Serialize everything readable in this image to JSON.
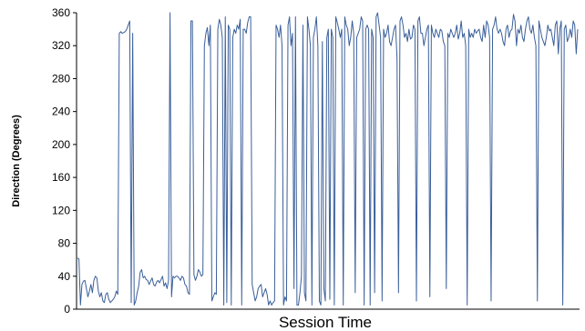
{
  "chart_data": {
    "type": "line",
    "title": "",
    "xlabel": "Session Time",
    "ylabel": "Direction (Degrees)",
    "ylim": [
      0,
      360
    ],
    "yticks": [
      0,
      40,
      80,
      120,
      160,
      200,
      240,
      280,
      320,
      360
    ],
    "grid": false,
    "legend": "none",
    "series_color": "#3a5f9a",
    "series": [
      {
        "values": [
          62,
          61,
          5,
          30,
          34,
          35,
          25,
          15,
          22,
          30,
          20,
          35,
          40,
          38,
          22,
          15,
          20,
          10,
          8,
          18,
          20,
          12,
          8,
          10,
          12,
          15,
          22,
          18,
          335,
          337,
          335,
          336,
          337,
          340,
          345,
          350,
          8,
          335,
          5,
          10,
          20,
          28,
          45,
          48,
          38,
          40,
          36,
          35,
          30,
          34,
          38,
          30,
          28,
          33,
          35,
          32,
          36,
          40,
          28,
          32,
          25,
          35,
          360,
          15,
          40,
          38,
          40,
          40,
          38,
          35,
          40,
          38,
          30,
          28,
          20,
          18,
          350,
          350,
          42,
          35,
          40,
          48,
          45,
          40,
          42,
          320,
          335,
          342,
          320,
          345,
          10,
          15,
          20,
          18,
          340,
          352,
          345,
          330,
          5,
          355,
          8,
          345,
          340,
          5,
          330,
          340,
          335,
          345,
          340,
          352,
          5,
          340,
          340,
          335,
          348,
          355,
          355,
          30,
          20,
          10,
          15,
          25,
          28,
          30,
          15,
          20,
          25,
          18,
          5,
          10,
          5,
          8,
          10,
          345,
          340,
          330,
          345,
          320,
          5,
          15,
          10,
          345,
          355,
          320,
          335,
          25,
          355,
          5,
          5,
          20,
          40,
          345,
          20,
          10,
          355,
          340,
          320,
          5,
          330,
          340,
          355,
          320,
          10,
          5,
          325,
          25,
          10,
          330,
          340,
          12,
          340,
          330,
          5,
          355,
          348,
          340,
          330,
          340,
          5,
          355,
          345,
          340,
          320,
          330,
          350,
          335,
          20,
          330,
          335,
          340,
          355,
          350,
          5,
          340,
          345,
          340,
          5,
          340,
          330,
          20,
          355,
          360,
          345,
          330,
          10,
          340,
          330,
          335,
          345,
          325,
          320,
          330,
          340,
          345,
          305,
          20,
          350,
          355,
          345,
          330,
          335,
          325,
          340,
          328,
          330,
          345,
          340,
          10,
          350,
          355,
          335,
          335,
          320,
          330,
          340,
          345,
          15,
          345,
          335,
          330,
          340,
          335,
          330,
          340,
          338,
          325,
          320,
          25,
          335,
          330,
          340,
          335,
          330,
          335,
          345,
          328,
          335,
          350,
          330,
          335,
          320,
          5,
          340,
          330,
          335,
          330,
          340,
          335,
          338,
          340,
          330,
          325,
          345,
          330,
          350,
          345,
          330,
          10,
          340,
          345,
          355,
          340,
          335,
          340,
          335,
          325,
          320,
          340,
          345,
          330,
          338,
          340,
          358,
          350,
          320,
          340,
          335,
          345,
          330,
          325,
          340,
          350,
          355,
          340,
          335,
          345,
          330,
          320,
          10,
          350,
          340,
          330,
          325,
          320,
          330,
          345,
          338,
          340,
          330,
          320,
          345,
          350,
          310,
          340,
          350,
          5,
          340,
          345,
          325,
          330,
          340,
          330,
          350,
          345,
          310,
          340
        ]
      }
    ]
  }
}
